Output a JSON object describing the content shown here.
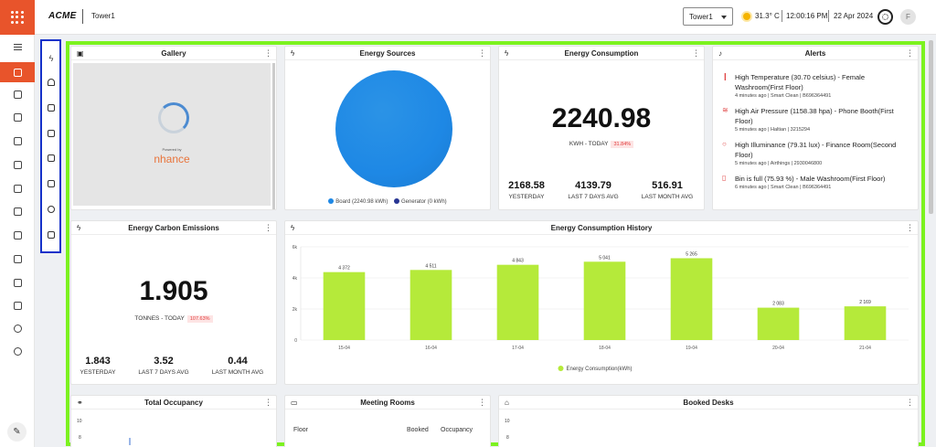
{
  "header": {
    "logo": "ACME",
    "site": "Tower1",
    "site_select": "Tower1",
    "temperature": "31.3° C",
    "time": "12:00:16 PM",
    "date": "22 Apr 2024",
    "avatar_initial": "F"
  },
  "nav": {
    "icons": [
      "menu-icon",
      "home-icon",
      "copy-icon",
      "monitor-icon",
      "nodes-icon",
      "chat-icon",
      "car-icon",
      "device-icon",
      "screen-icon",
      "people-icon",
      "support-icon",
      "chart-icon",
      "settings-icon",
      "headset-icon"
    ]
  },
  "widgets": [
    "energy-icon",
    "bell-icon",
    "occupancy-icon",
    "desk-icon",
    "feedback-icon",
    "meeting-room-icon",
    "air-quality-icon",
    "book-icon"
  ],
  "gallery": {
    "title": "Gallery",
    "powered_by": "Powered by",
    "brand": "nhance"
  },
  "energy_sources": {
    "title": "Energy Sources",
    "legend": [
      {
        "label": "Board (2240.98 kWh)",
        "color": "#1e88e5"
      },
      {
        "label": "Generator (0 kWh)",
        "color": "#283593"
      }
    ]
  },
  "energy_consumption": {
    "title": "Energy Consumption",
    "value": "2240.98",
    "unit_label": "KWH - TODAY",
    "change": "31.84%",
    "stats": [
      {
        "value": "2168.58",
        "label": "YESTERDAY"
      },
      {
        "value": "4139.79",
        "label": "LAST 7 DAYS AVG"
      },
      {
        "value": "516.91",
        "label": "LAST MONTH AVG"
      }
    ]
  },
  "alerts": {
    "title": "Alerts",
    "items": [
      {
        "text": "High Temperature (30.70 celsius) - Female Washroom(First Floor)",
        "meta": "4 minutes ago | Smart Clean | B696364491"
      },
      {
        "text": "High Air Pressure (1158.38 hpa) - Phone Booth(First Floor)",
        "meta": "5 minutes ago | Haltian | 3215294"
      },
      {
        "text": "High Illuminance (79.31 lux) - Finance Room(Second Floor)",
        "meta": "5 minutes ago | Airthings | 2930046800"
      },
      {
        "text": "Bin is full (75.93 %) - Male Washroom(First Floor)",
        "meta": "6 minutes ago | Smart Clean | B696364491"
      }
    ]
  },
  "carbon": {
    "title": "Energy Carbon Emissions",
    "value": "1.905",
    "unit_label": "TONNES - TODAY",
    "change": "107.63%",
    "stats": [
      {
        "value": "1.843",
        "label": "YESTERDAY"
      },
      {
        "value": "3.52",
        "label": "LAST 7 DAYS AVG"
      },
      {
        "value": "0.44",
        "label": "LAST MONTH AVG"
      }
    ]
  },
  "history": {
    "title": "Energy Consumption History",
    "legend": "Energy Consumption(kWh)"
  },
  "chart_data": {
    "type": "bar",
    "title": "Energy Consumption History",
    "categories": [
      "15-04",
      "16-04",
      "17-04",
      "18-04",
      "19-04",
      "20-04",
      "21-04"
    ],
    "values": [
      4372,
      4511,
      4843,
      5041,
      5265,
      2083,
      2169
    ],
    "value_labels": [
      "4 372",
      "4 511",
      "4 843",
      "5 041",
      "5 265",
      "2 083",
      "2 169"
    ],
    "yticks": [
      "6k",
      "4k",
      "2k",
      "0"
    ],
    "ylim": [
      0,
      6000
    ],
    "series_name": "Energy Consumption(kWh)",
    "color": "#b5ea3a"
  },
  "occupancy": {
    "title": "Total Occupancy",
    "yticks": [
      "10",
      "8"
    ]
  },
  "meeting_rooms": {
    "title": "Meeting Rooms",
    "columns": [
      "Floor",
      "Booked",
      "Occupancy"
    ]
  },
  "booked_desks": {
    "title": "Booked Desks",
    "yticks": [
      "10",
      "8"
    ]
  }
}
